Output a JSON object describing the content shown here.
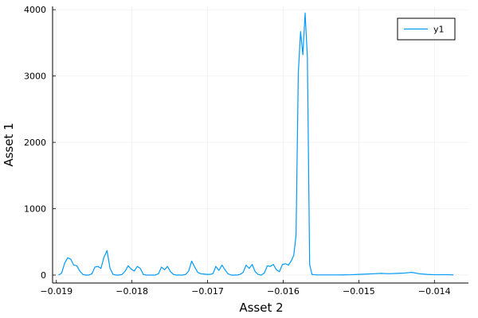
{
  "chart_data": {
    "type": "line",
    "title": "",
    "xlabel": "Asset 2",
    "ylabel": "Asset 1",
    "xlim": [
      -0.01905,
      -0.01355
    ],
    "ylim": [
      -120,
      4050
    ],
    "x_ticks": [
      -0.019,
      -0.018,
      -0.017,
      -0.016,
      -0.015,
      -0.014
    ],
    "x_tick_labels": [
      "−0.019",
      "−0.018",
      "−0.017",
      "−0.016",
      "−0.015",
      "−0.014"
    ],
    "y_ticks": [
      0,
      1000,
      2000,
      3000,
      4000
    ],
    "y_tick_labels": [
      "0",
      "1000",
      "2000",
      "3000",
      "4000"
    ],
    "grid": true,
    "legend": {
      "position": "top-right",
      "entries": [
        "y1"
      ]
    },
    "series": [
      {
        "name": "y1",
        "color": "#009af9",
        "x": [
          -0.01897,
          -0.01893,
          -0.01889,
          -0.01885,
          -0.01881,
          -0.01877,
          -0.01873,
          -0.01869,
          -0.01865,
          -0.01861,
          -0.01857,
          -0.01853,
          -0.01849,
          -0.01845,
          -0.01841,
          -0.01837,
          -0.01833,
          -0.01829,
          -0.01825,
          -0.01821,
          -0.01817,
          -0.01813,
          -0.01809,
          -0.01805,
          -0.01801,
          -0.01797,
          -0.01793,
          -0.01789,
          -0.01785,
          -0.01781,
          -0.01777,
          -0.01773,
          -0.01769,
          -0.01765,
          -0.01761,
          -0.01757,
          -0.01753,
          -0.01749,
          -0.01745,
          -0.01741,
          -0.01737,
          -0.01733,
          -0.01729,
          -0.01725,
          -0.01721,
          -0.01717,
          -0.01713,
          -0.01709,
          -0.01705,
          -0.01701,
          -0.01697,
          -0.01693,
          -0.01689,
          -0.01685,
          -0.01681,
          -0.01677,
          -0.01673,
          -0.01669,
          -0.01665,
          -0.01661,
          -0.01657,
          -0.01653,
          -0.01649,
          -0.01645,
          -0.01641,
          -0.01637,
          -0.01633,
          -0.01629,
          -0.01625,
          -0.01621,
          -0.01617,
          -0.01613,
          -0.01609,
          -0.01605,
          -0.01601,
          -0.01597,
          -0.01593,
          -0.01589,
          -0.01586,
          -0.01583,
          -0.0158,
          -0.01577,
          -0.01574,
          -0.01571,
          -0.01568,
          -0.01565,
          -0.01562,
          -0.01559,
          -0.01555,
          -0.0155,
          -0.0154,
          -0.0153,
          -0.0152,
          -0.0151,
          -0.015,
          -0.0149,
          -0.0148,
          -0.0147,
          -0.0146,
          -0.0145,
          -0.0144,
          -0.0143,
          -0.0142,
          -0.0141,
          -0.014,
          -0.0139,
          -0.0138,
          -0.01375
        ],
        "y": [
          0,
          30,
          180,
          260,
          240,
          150,
          140,
          60,
          10,
          0,
          0,
          20,
          120,
          130,
          100,
          270,
          370,
          100,
          10,
          0,
          0,
          10,
          60,
          140,
          90,
          60,
          130,
          100,
          10,
          0,
          0,
          0,
          0,
          20,
          120,
          80,
          130,
          50,
          10,
          0,
          0,
          0,
          10,
          60,
          210,
          120,
          40,
          20,
          15,
          10,
          10,
          20,
          130,
          70,
          150,
          80,
          20,
          0,
          0,
          0,
          10,
          40,
          150,
          100,
          160,
          50,
          10,
          0,
          30,
          140,
          130,
          160,
          80,
          50,
          160,
          170,
          150,
          220,
          300,
          600,
          3050,
          3670,
          3320,
          3950,
          3280,
          160,
          10,
          5,
          3,
          2,
          2,
          2,
          3,
          5,
          10,
          15,
          20,
          25,
          20,
          25,
          30,
          40,
          20,
          10,
          5,
          5,
          5,
          3
        ]
      }
    ]
  }
}
